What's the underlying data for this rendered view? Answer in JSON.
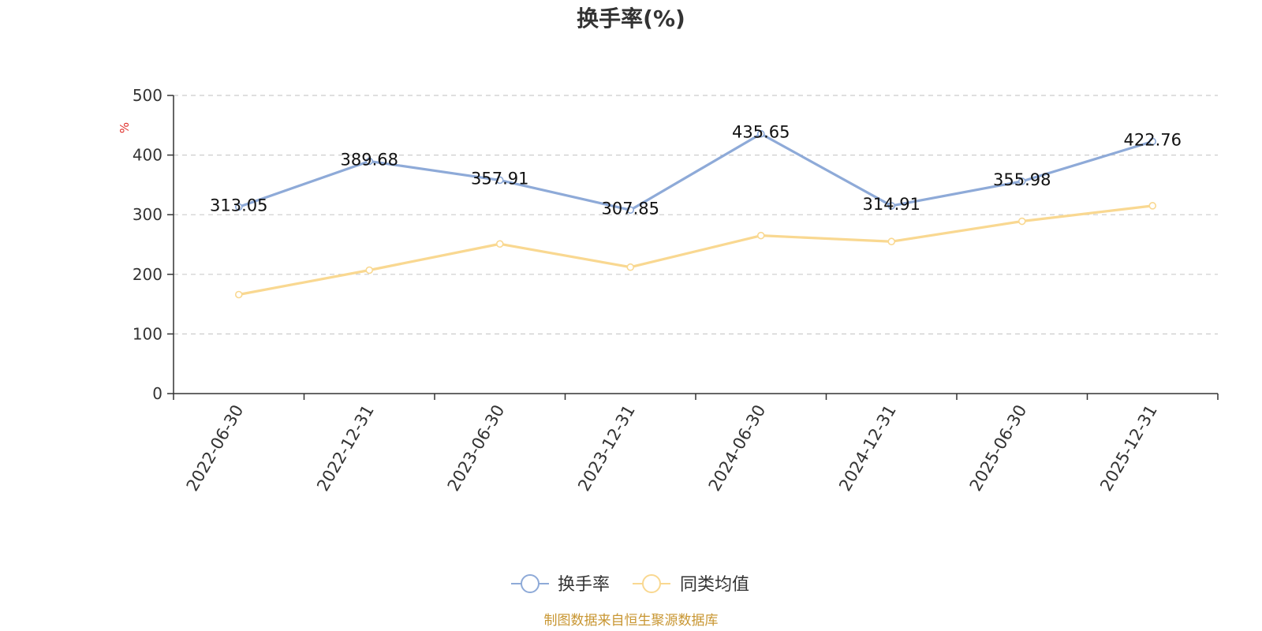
{
  "chart_data": {
    "type": "line",
    "title": "换手率(%)",
    "ylabel": "%",
    "ylim": [
      0,
      500
    ],
    "yticks": [
      0,
      100,
      200,
      300,
      400,
      500
    ],
    "grid": true,
    "categories": [
      "2022-06-30",
      "2022-12-31",
      "2023-06-30",
      "2023-12-31",
      "2024-06-30",
      "2024-12-31",
      "2025-06-30",
      "2025-12-31"
    ],
    "series": [
      {
        "name": "换手率",
        "color": "#8eaad8",
        "values": [
          313.05,
          389.68,
          357.91,
          307.85,
          435.65,
          314.91,
          355.98,
          422.76
        ],
        "labels": [
          "313.05",
          "389.68",
          "357.91",
          "307.85",
          "435.65",
          "314.91",
          "355.98",
          "422.76"
        ],
        "show_labels": true
      },
      {
        "name": "同类均值",
        "color": "#f9d891",
        "values": [
          166,
          207,
          251,
          212,
          265,
          255,
          289,
          315
        ],
        "show_labels": false
      }
    ],
    "legend": [
      "换手率",
      "同类均值"
    ],
    "legend_position": "bottom-center",
    "source": "制图数据来自恒生聚源数据库"
  },
  "colors": {
    "axis": "#333333",
    "grid": "#cccccc",
    "unit": "#e0302c",
    "source": "#c89632"
  }
}
